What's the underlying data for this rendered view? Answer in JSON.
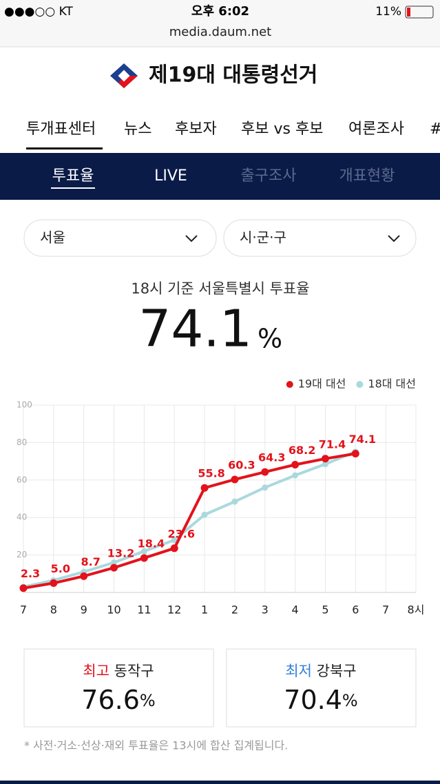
{
  "status_bar": {
    "carrier": "●●●○○ KT",
    "time": "오후 6:02",
    "battery": "11%"
  },
  "url": "media.daum.net",
  "header": {
    "title": "제19대 대통령선거"
  },
  "nav": {
    "tabs": [
      "투개표센터",
      "뉴스",
      "후보자",
      "후보 vs 후보",
      "여론조사",
      "#"
    ]
  },
  "subnav": {
    "tabs": [
      "투표율",
      "LIVE",
      "출구조사",
      "개표현황"
    ]
  },
  "filters": {
    "region": "서울",
    "district": "시·군·구"
  },
  "summary": {
    "heading": "18시 기준 서울특별시 투표율",
    "rate": "74.1",
    "unit": "%"
  },
  "chart_data": {
    "type": "line",
    "categories": [
      "7",
      "8",
      "9",
      "10",
      "11",
      "12",
      "1",
      "2",
      "3",
      "4",
      "5",
      "6",
      "7",
      "8시"
    ],
    "series": [
      {
        "name": "19대 대선",
        "color": "#e3121b",
        "values": [
          2.3,
          5.0,
          8.7,
          13.2,
          18.4,
          23.6,
          55.8,
          60.3,
          64.3,
          68.2,
          71.4,
          74.1,
          null,
          null
        ],
        "value_labels": [
          "2.3",
          "5.0",
          "8.7",
          "13.2",
          "18.4",
          "23.6",
          "55.8",
          "60.3",
          "64.3",
          "68.2",
          "71.4",
          "74.1",
          null,
          null
        ]
      },
      {
        "name": "18대 대선",
        "color": "#a9d9dd",
        "values": [
          3,
          6.5,
          11,
          16,
          22,
          28,
          41.5,
          48.5,
          56,
          62.5,
          68.5,
          75.1,
          null,
          null
        ]
      }
    ],
    "ylim": [
      0,
      100
    ],
    "yticks": [
      20,
      40,
      60,
      80,
      100
    ],
    "grid": true,
    "legend": "top-right"
  },
  "cards": [
    {
      "label": "최고",
      "name": "동작구",
      "value": "76.6",
      "unit": "%"
    },
    {
      "label": "최저",
      "name": "강북구",
      "value": "70.4",
      "unit": "%"
    }
  ],
  "footnote": "* 사전·거소·선상·재외 투표율은 13시에 합산 집계됩니다."
}
